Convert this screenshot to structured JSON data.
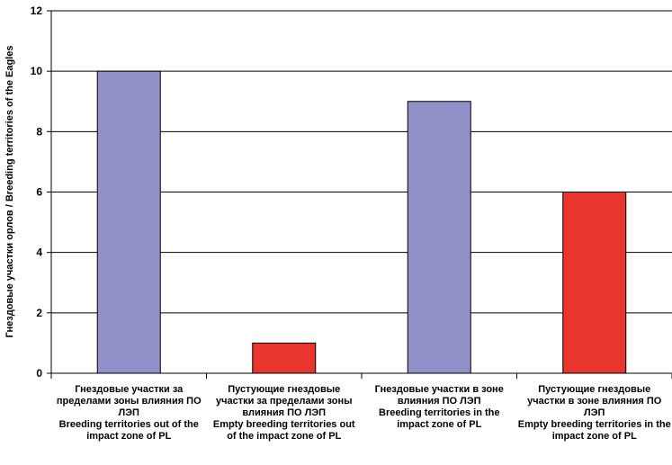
{
  "chart_data": {
    "type": "bar",
    "categories": [
      "Гнездовые участки за пределами зоны влияния ПО ЛЭП\nBreeding territories out of the impact zone of PL",
      "Пустующие гнездовые участки за пределами зоны влияния ПО ЛЭП\nEmpty breeding territories out of the impact zone of PL",
      "Гнездовые участки в зоне влияния ПО ЛЭП\nBreeding territories in the impact zone of PL",
      "Пустующие гнездовые участки в зоне влияния ПО ЛЭП\nEmpty breeding territories in the impact zone of PL"
    ],
    "values": [
      10,
      1,
      9,
      6
    ],
    "colors": [
      "#8f91c8",
      "#e8352e",
      "#8f91c8",
      "#e8352e"
    ],
    "title": "",
    "xlabel": "",
    "ylabel": "Гнездовые участки орлов / Breeding territories of the Eagles",
    "ylim": [
      0,
      12
    ],
    "yticks": [
      0,
      2,
      4,
      6,
      8,
      10,
      12
    ],
    "grid": true,
    "legend": "none"
  }
}
